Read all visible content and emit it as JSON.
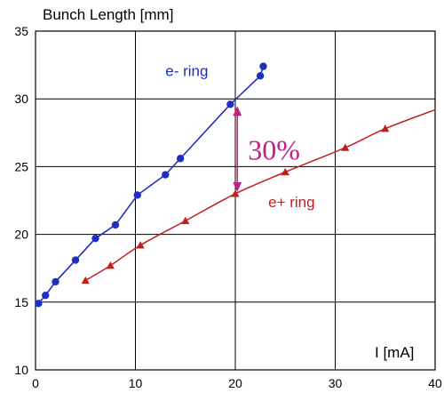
{
  "chart_data": {
    "type": "line",
    "ylabel": "Bunch Length [mm]",
    "xlabel": "I [mA]",
    "xlim": [
      0,
      40
    ],
    "ylim": [
      10,
      35
    ],
    "x_ticks": [
      0,
      10,
      20,
      30,
      40
    ],
    "y_ticks": [
      10,
      15,
      20,
      25,
      30,
      35
    ],
    "grid": true,
    "series": [
      {
        "name": "e- ring",
        "color": "#1f2fbf",
        "marker": "circle",
        "x": [
          0.3,
          1.0,
          2.0,
          4.0,
          6.0,
          8.0,
          10.2,
          13.0,
          14.5,
          19.5,
          22.5,
          22.8
        ],
        "y": [
          14.9,
          15.5,
          16.5,
          18.1,
          19.7,
          20.7,
          22.9,
          24.4,
          25.6,
          29.6,
          31.7,
          32.4
        ]
      },
      {
        "name": "e+ ring",
        "color": "#c0201c",
        "marker": "triangle",
        "x": [
          5.0,
          7.5,
          10.5,
          15.0,
          20.0,
          25.0,
          31.0,
          35.0
        ],
        "y": [
          16.6,
          17.7,
          19.2,
          21.0,
          23.0,
          24.6,
          26.4,
          27.8
        ]
      }
    ],
    "fit_curve_e_plus": {
      "x_start": 5.0,
      "x_end": 40,
      "y_end": 29.2
    },
    "annotation": {
      "text": "30%",
      "color": "#c51d8a",
      "x": 20.2,
      "y_from": 23.0,
      "y_to": 29.6
    }
  }
}
